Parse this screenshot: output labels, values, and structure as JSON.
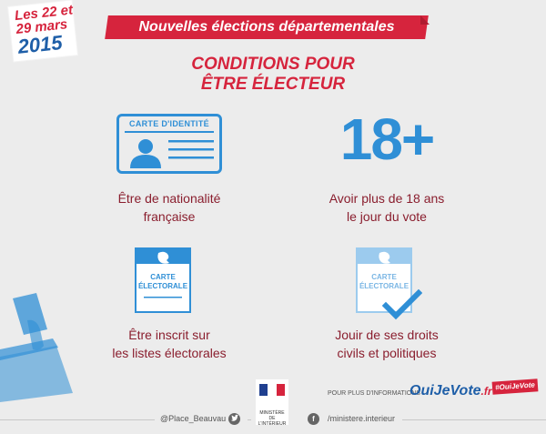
{
  "date_badge": {
    "line1": "Les 22 et",
    "line2": "29 mars",
    "line3": "2015"
  },
  "header": {
    "banner": "Nouvelles élections départementales",
    "title_line1": "CONDITIONS POUR",
    "title_line2": "ÊTRE ÉLECTEUR"
  },
  "conditions": [
    {
      "icon": "id-card-icon",
      "card_label": "CARTE D'IDENTITÉ",
      "caption_line1": "Être de nationalité",
      "caption_line2": "française"
    },
    {
      "icon": "age-18-plus",
      "card_label": "18+",
      "caption_line1": "Avoir plus de 18 ans",
      "caption_line2": "le jour du vote"
    },
    {
      "icon": "voter-card-icon",
      "card_label_line1": "CARTE",
      "card_label_line2": "ÉLECTORALE",
      "caption_line1": "Être inscrit sur",
      "caption_line2": "les listes électorales"
    },
    {
      "icon": "voter-card-check-icon",
      "card_label_line1": "CARTE",
      "card_label_line2": "ÉLECTORALE",
      "caption_line1": "Jouir de ses droits",
      "caption_line2": "civils et politiques"
    }
  ],
  "footer": {
    "info_label": "POUR PLUS D'INFORMATIONS :",
    "site_main": "OuiJeVote",
    "site_tld": ".fr",
    "hashtag": "#OuiJeVote",
    "twitter": "@Place_Beauvau",
    "twitter_icon": "twitter-icon",
    "facebook": "/ministere.interieur",
    "facebook_icon": "facebook-icon",
    "ministry_line1": "MINISTÈRE",
    "ministry_line2": "DE",
    "ministry_line3": "L'INTÉRIEUR"
  },
  "colors": {
    "red": "#d6243d",
    "blue": "#2f8fd6",
    "dark_blue": "#1f5fa8",
    "caption": "#8a1e2e",
    "background": "#ececec"
  }
}
